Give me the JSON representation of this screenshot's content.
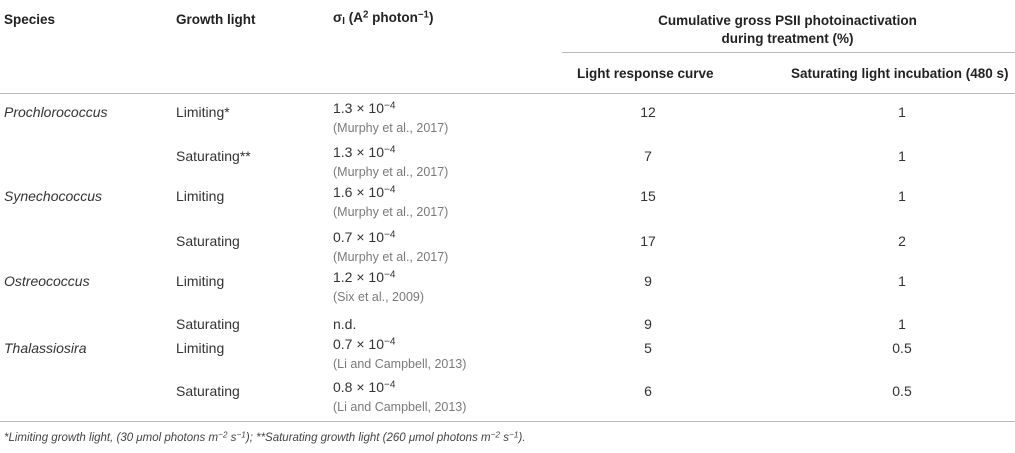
{
  "headers": {
    "species": "Species",
    "growth_light": "Growth light",
    "sigma_sym": "σ",
    "sigma_sub": "I",
    "sigma_a": "(A",
    "sigma_sup": "2",
    "sigma_unit": "photon",
    "sigma_exp": "−1",
    "sigma_close": ")",
    "cumulative_line1": "Cumulative gross PSII photoinactivation",
    "cumulative_line2": "during treatment (%)",
    "light_response_curve": "Light response curve",
    "saturating_incubation": "Saturating light incubation (480 s)"
  },
  "sci_times": "× 10",
  "rows": [
    {
      "species": "Prochlorococcus",
      "growth": "Limiting*",
      "mantissa": "1.3",
      "exp": "−4",
      "ref": "(Murphy et al., 2017)",
      "lrc": "12",
      "sat": "1"
    },
    {
      "species": "",
      "growth": "Saturating**",
      "mantissa": "1.3",
      "exp": "−4",
      "ref": "(Murphy et al., 2017)",
      "lrc": "7",
      "sat": "1"
    },
    {
      "species": "Synechococcus",
      "growth": "Limiting",
      "mantissa": "1.6",
      "exp": "−4",
      "ref": "(Murphy et al., 2017)",
      "lrc": "15",
      "sat": "1"
    },
    {
      "species": "",
      "growth": "Saturating",
      "mantissa": "0.7",
      "exp": "−4",
      "ref": "(Murphy et al., 2017)",
      "lrc": "17",
      "sat": "2"
    },
    {
      "species": "Ostreococcus",
      "growth": "Limiting",
      "mantissa": "1.2",
      "exp": "−4",
      "ref": "(Six et al., 2009)",
      "lrc": "9",
      "sat": "1"
    },
    {
      "species": "",
      "growth": "Saturating",
      "value": "n.d.",
      "lrc": "9",
      "sat": "1"
    },
    {
      "species": "Thalassiosira",
      "growth": "Limiting",
      "mantissa": "0.7",
      "exp": "−4",
      "ref": "(Li and Campbell, 2013)",
      "lrc": "5",
      "sat": "0.5"
    },
    {
      "species": "",
      "growth": "Saturating",
      "mantissa": "0.8",
      "exp": "−4",
      "ref": "(Li and Campbell, 2013)",
      "lrc": "6",
      "sat": "0.5"
    }
  ],
  "footnote": {
    "p1": "*Limiting growth light, (30 μmol photons m",
    "e1": "−2",
    "p2": " s",
    "e2": "−1",
    "p3": "); **Saturating growth light (260 μmol photons m",
    "e3": "−2",
    "p4": " s",
    "e4": "−1",
    "p5": ")."
  }
}
